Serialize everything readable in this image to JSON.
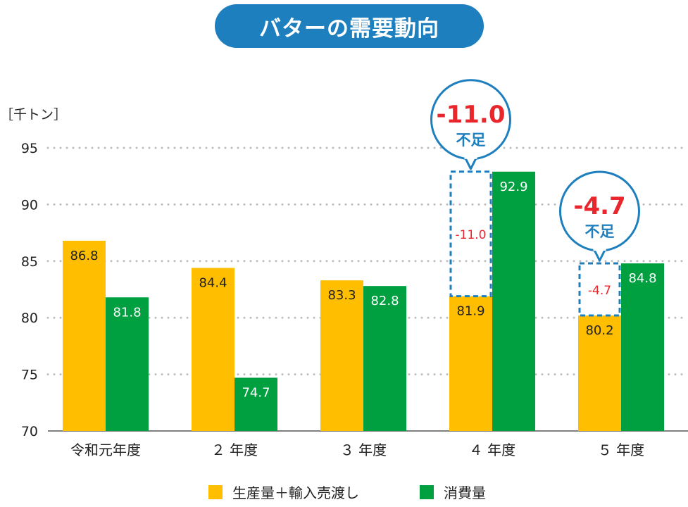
{
  "title": "バターの需要動向",
  "unit_label": "［千トン］",
  "colors": {
    "supply": "#ffbe00",
    "demand": "#00a040",
    "title_bg": "#1d7fbe",
    "shortage_text": "#e8262c",
    "callout_border": "#1d7fbe",
    "grid": "#bdbdbd"
  },
  "legend": {
    "supply_label": "生産量＋輸入売渡し",
    "demand_label": "消費量"
  },
  "chart_data": {
    "type": "bar",
    "title": "バターの需要動向",
    "ylabel": "［千トン］",
    "xlabel": "",
    "ylim": [
      70,
      95
    ],
    "yticks": [
      70,
      75,
      80,
      85,
      90,
      95
    ],
    "grid": true,
    "legend_position": "bottom",
    "categories": [
      "令和元年度",
      "２ 年度",
      "３ 年度",
      "４ 年度",
      "５ 年度"
    ],
    "series": [
      {
        "name": "生産量＋輸入売渡し",
        "values": [
          86.8,
          84.4,
          83.3,
          81.9,
          80.2
        ],
        "labels": [
          "86.8",
          "84.4",
          "83.3",
          "81.9",
          "80.2"
        ]
      },
      {
        "name": "消費量",
        "values": [
          81.8,
          74.7,
          82.8,
          92.9,
          84.8
        ],
        "labels": [
          "81.8",
          "74.7",
          "82.8",
          "92.9",
          "84.8"
        ]
      }
    ],
    "shortfalls": [
      {
        "category_index": 3,
        "value": -11.0,
        "label": "-11.0",
        "callout_value": "-11.0",
        "callout_text": "不足"
      },
      {
        "category_index": 4,
        "value": -4.7,
        "label": "-4.7",
        "callout_value": "-4.7",
        "callout_text": "不足"
      }
    ]
  }
}
